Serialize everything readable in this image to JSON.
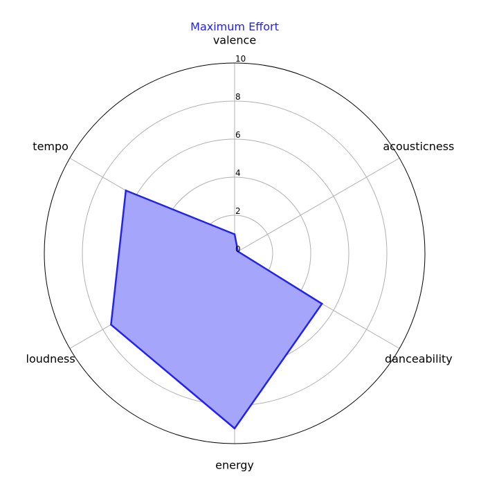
{
  "chart_data": {
    "type": "radar",
    "title": "Maximum Effort",
    "categories": [
      "valence",
      "acousticness",
      "danceability",
      "energy",
      "loudness",
      "tempo"
    ],
    "series": [
      {
        "values": [
          1.0,
          0.2,
          5.3,
          9.2,
          7.5,
          6.6
        ]
      }
    ],
    "rlim": [
      0,
      10
    ],
    "rticks": [
      "0",
      "2",
      "4",
      "6",
      "8",
      "10"
    ],
    "grid": true,
    "colors": {
      "title": "#2222ee",
      "line": "#2222ee",
      "fill": "#a5a5fb",
      "grid": "#b0b0b0",
      "frame": "#000000"
    }
  }
}
